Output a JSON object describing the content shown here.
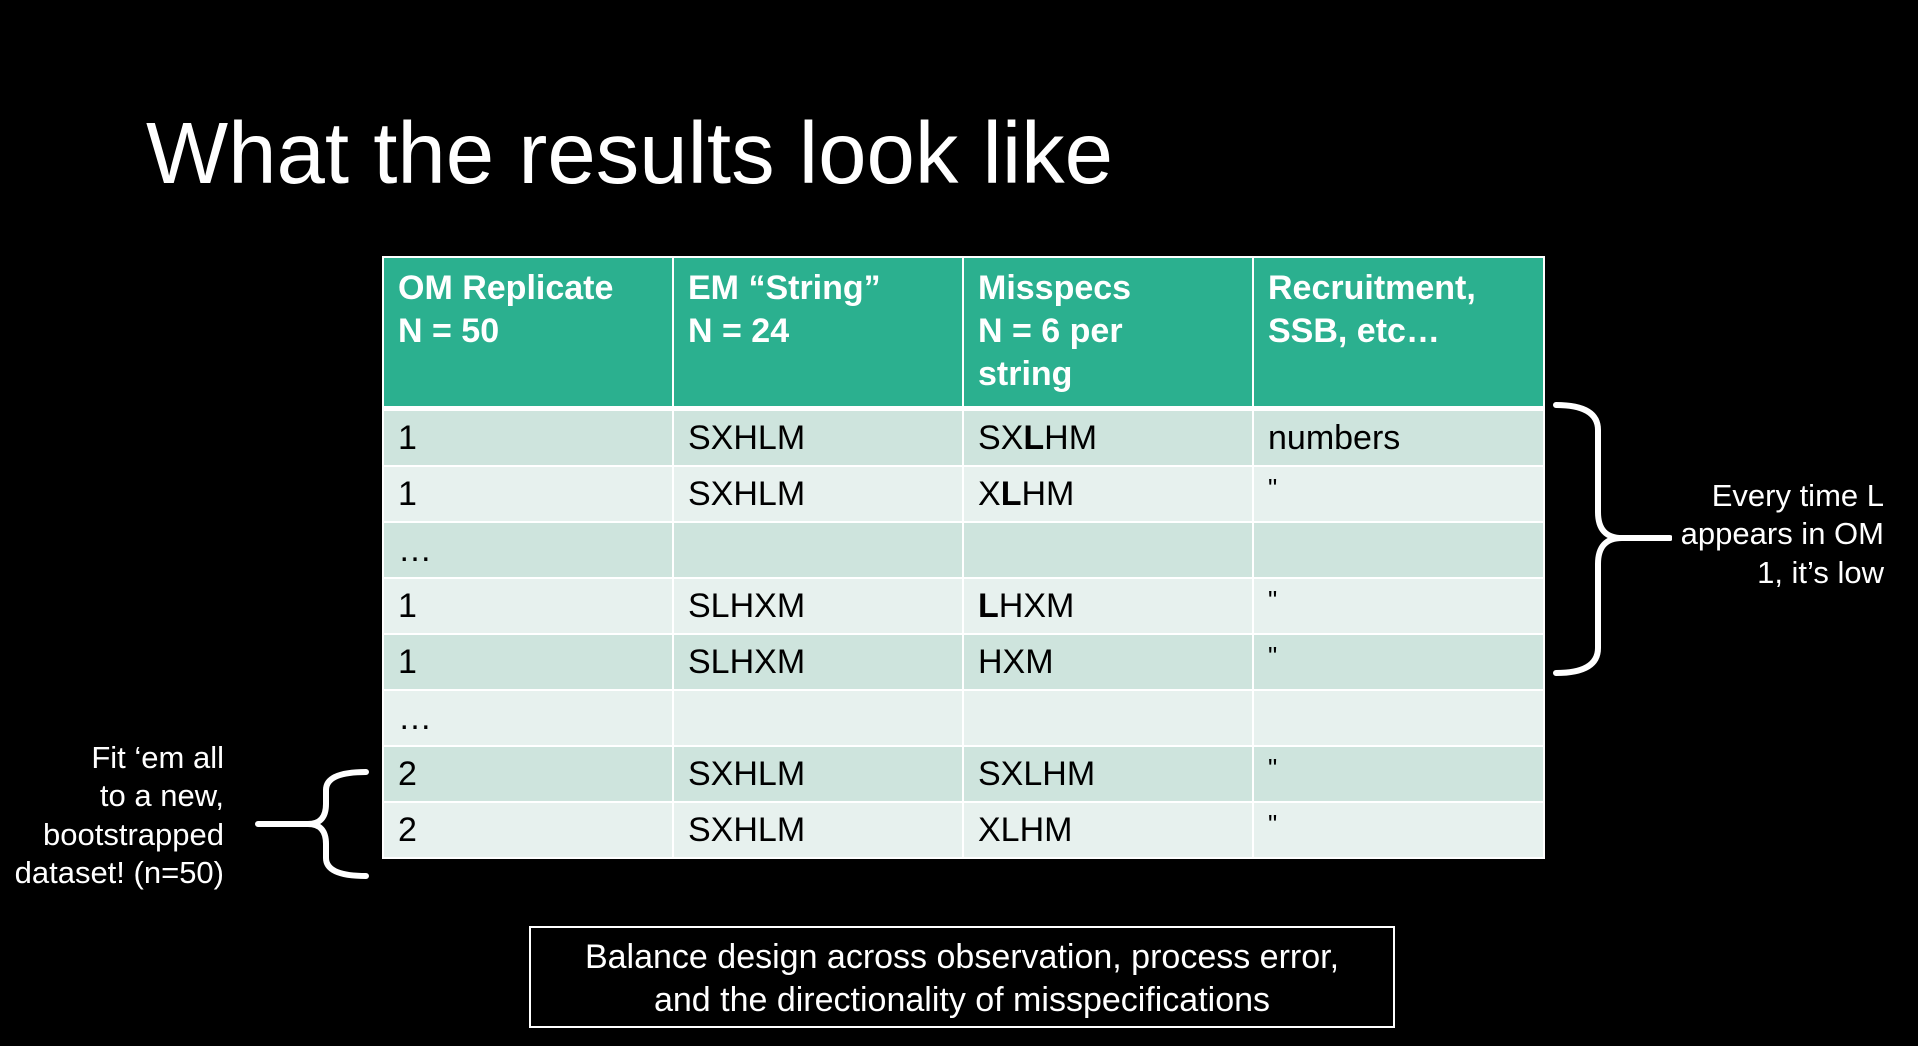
{
  "slide": {
    "title": "What the results look like"
  },
  "table": {
    "headers": [
      [
        "OM Replicate",
        "N = 50"
      ],
      [
        "EM “String”",
        "N = 24"
      ],
      [
        "Misspecs",
        "N = 6 per",
        "string"
      ],
      [
        "Recruitment,",
        "SSB, etc…"
      ]
    ],
    "rows": [
      {
        "om": "1",
        "em": "SXHLM",
        "mis": [
          "SX",
          "L",
          "HM"
        ],
        "val": "numbers"
      },
      {
        "om": "1",
        "em": "SXHLM",
        "mis": [
          "X",
          "L",
          "HM"
        ],
        "val": "\""
      },
      {
        "om": "…",
        "em": "",
        "mis": [
          "",
          "",
          ""
        ],
        "val": ""
      },
      {
        "om": "1",
        "em": "SLHXM",
        "mis": [
          "",
          "L",
          "HXM"
        ],
        "val": "\""
      },
      {
        "om": "1",
        "em": "SLHXM",
        "mis": [
          "HXM",
          "",
          ""
        ],
        "val": "\""
      },
      {
        "om": "…",
        "em": "",
        "mis": [
          "",
          "",
          ""
        ],
        "val": ""
      },
      {
        "om": "2",
        "em": "SXHLM",
        "mis": [
          "SXLHM",
          "",
          ""
        ],
        "val": "\""
      },
      {
        "om": "2",
        "em": "SXHLM",
        "mis": [
          "XLHM",
          "",
          ""
        ],
        "val": "\""
      }
    ]
  },
  "notes": {
    "left": [
      "Fit ‘em all",
      "to a new,",
      "bootstrapped",
      "dataset! (n=50)"
    ],
    "right": [
      "Every time L",
      "appears in OM",
      "1, it’s low"
    ]
  },
  "footer_box": {
    "lines": [
      "Balance design across observation, process error,",
      "and the directionality of misspecifications"
    ]
  },
  "colors": {
    "header": "#2bb08f",
    "row_odd": "#cee4dd",
    "row_even": "#e7f1ee",
    "background": "#000000"
  }
}
